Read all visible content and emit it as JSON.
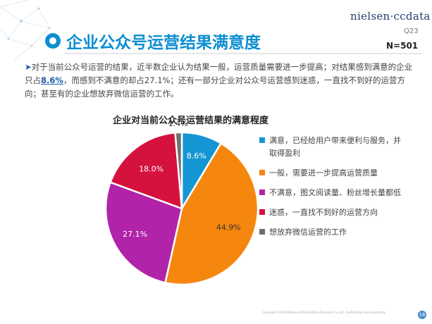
{
  "header": {
    "logo": "nielsen·ccdata",
    "title": "企业公众号运营结果满意度",
    "question": "Q23",
    "sample": "N=501"
  },
  "intro": {
    "part1": "对于当前公众号运营的结果，近半数企业认为结果一般，运营质量需要进一步提高；对结果感到满意的企业只占",
    "highlight": "8.6%",
    "part2": "，而感到不满意的却占27.1%；还有一部分企业对公众号运营感到迷惑，一直找不到好的运营方向；甚至有的企业想放弃微信运营的工作。"
  },
  "footer": {
    "copyright": "Copyright ©2016  Nielsen-CCData Media Research Co.,Ltd. Confidential and proprietary.",
    "page": "16"
  },
  "colors": {
    "accent": "#0d8ed1",
    "slices": [
      "#1596d4",
      "#f6870e",
      "#b123a9",
      "#d5123e",
      "#6f6f6f"
    ]
  },
  "chart_data": {
    "type": "pie",
    "title": "企业对当前公众号运营结果的满意程度",
    "categories": [
      "满意，已经给用户带来便利与服务，并取得盈利",
      "一般，需要进一步提高运营质量",
      "不满意，图文阅读量、粉丝增长量都低",
      "迷惑，一直找不到好的运营方向",
      "想放弃微信运营的工作"
    ],
    "values": [
      8.6,
      44.9,
      27.1,
      18.0,
      1.4
    ],
    "labels": [
      "8.6%",
      "44.9%",
      "27.1%",
      "18.0%",
      "1.4%"
    ],
    "legend_position": "right"
  }
}
